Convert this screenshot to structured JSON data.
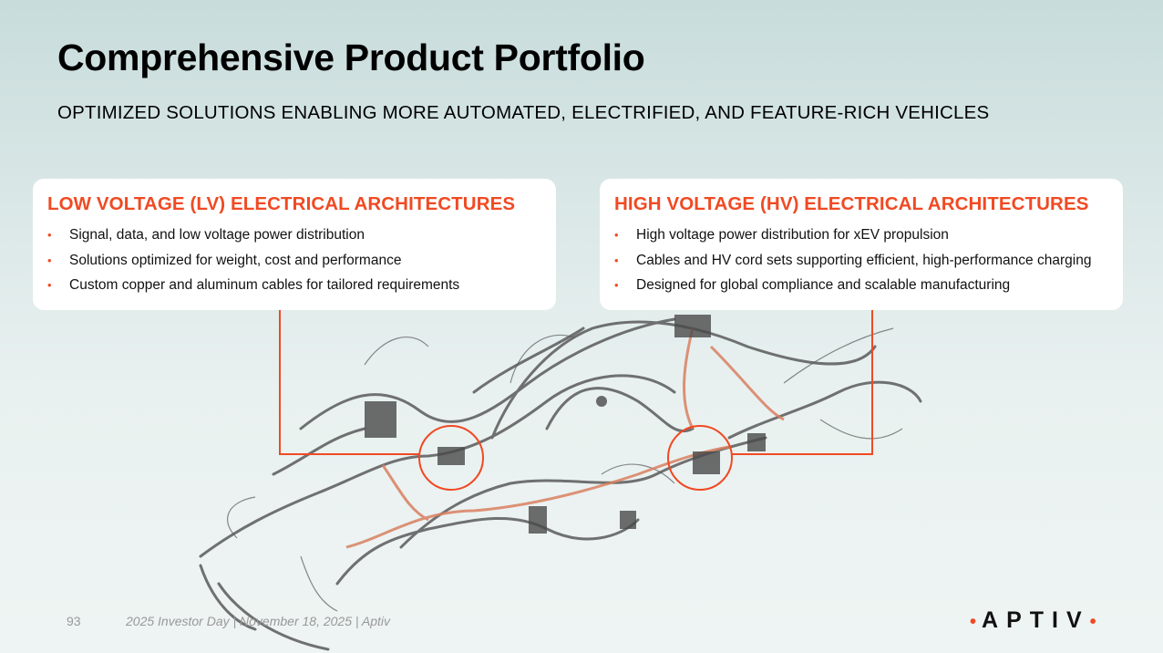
{
  "header": {
    "title": "Comprehensive Product Portfolio",
    "subtitle": "OPTIMIZED SOLUTIONS ENABLING MORE AUTOMATED, ELECTRIFIED, AND FEATURE-RICH VEHICLES"
  },
  "cards": [
    {
      "title": "LOW VOLTAGE (LV) ELECTRICAL ARCHITECTURES",
      "bullets": [
        "Signal, data, and low voltage power distribution",
        "Solutions optimized for weight, cost and performance",
        "Custom copper and aluminum cables for tailored requirements"
      ]
    },
    {
      "title": "HIGH VOLTAGE (HV) ELECTRICAL ARCHITECTURES",
      "bullets": [
        "High voltage power distribution for xEV propulsion",
        "Cables and HV cord sets supporting efficient, high-performance charging",
        "Designed for global compliance and scalable manufacturing"
      ]
    }
  ],
  "footer": {
    "page": "93",
    "text": "2025 Investor Day | November 18, 2025 | Aptiv",
    "logo": "APTIV",
    "bullet": "•"
  },
  "colors": {
    "accent": "#f04a23",
    "harness": "#555555",
    "hv_cable": "#d98060"
  }
}
